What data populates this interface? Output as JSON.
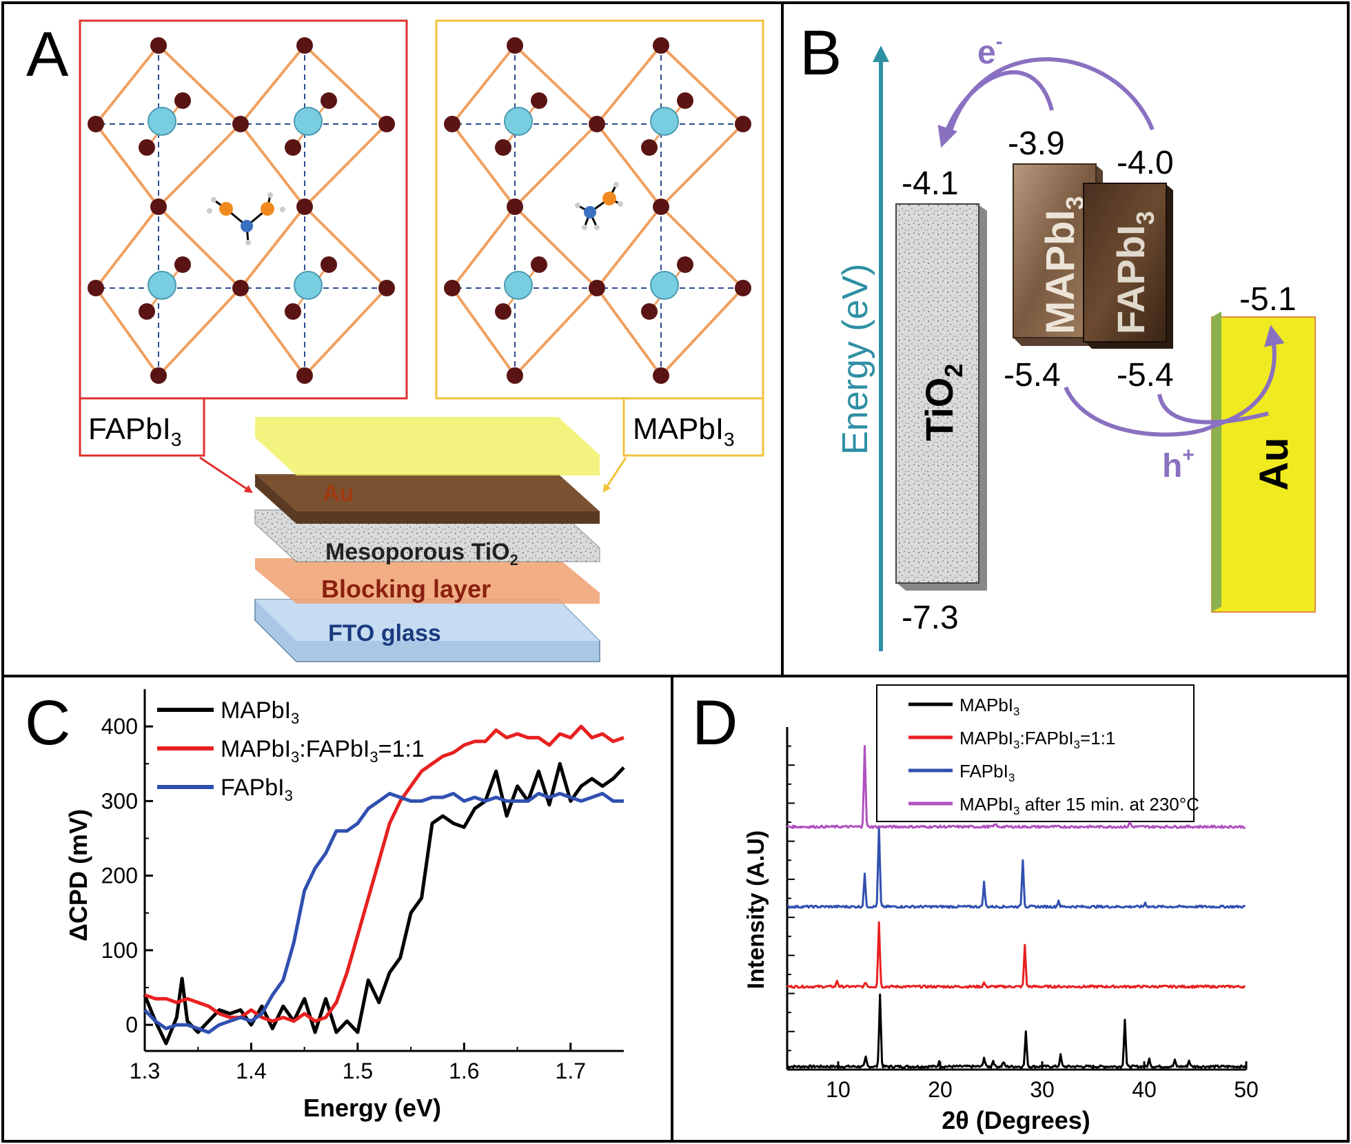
{
  "panels": {
    "A": {
      "letter": "A",
      "fa_label": "FAPbI",
      "fa_sub": "3",
      "ma_label": "MAPbI",
      "ma_sub": "3",
      "layers": {
        "au": "Au",
        "tio2": "Mesoporous TiO",
        "tio2_sub": "2",
        "blocking": "Blocking layer",
        "fto": "FTO glass"
      },
      "colors": {
        "fa_frame": "#e03030",
        "ma_frame": "#f2c23a",
        "bond": "#f0a060",
        "atom": "#5a1414",
        "center": "#79cde0"
      }
    },
    "B": {
      "letter": "B",
      "axis_label": "Energy (eV)",
      "electron": "e",
      "electron_sup": "-",
      "hole": "h",
      "hole_sup": "+",
      "tio2": {
        "name": "TiO",
        "sub": "2",
        "cb": "-4.1",
        "vb": "-7.3"
      },
      "mapbi3": {
        "name": "MAPbI",
        "sub": "3",
        "cb": "-3.9",
        "vb": "-5.4"
      },
      "fapbi3": {
        "name": "FAPbI",
        "sub": "3",
        "cb": "-4.0",
        "vb": "-5.4"
      },
      "au": {
        "name": "Au",
        "level": "-5.1"
      },
      "colors": {
        "axis": "#2e8fa3",
        "arrow": "#8a70c0",
        "au": "#f0ea20"
      }
    },
    "C": {
      "letter": "C",
      "xlabel": "Energy (eV)",
      "ylabel": "ΔCPD (mV)",
      "legend": [
        {
          "name": "MAPbI",
          "sub": "3",
          "tail": "",
          "color": "#000000"
        },
        {
          "name": "MAPbI",
          "sub": "3",
          "tail": ":FAPbI",
          "sub2": "3",
          "tail2": "=1:1",
          "color": "#e82020"
        },
        {
          "name": "FAPbI",
          "sub": "3",
          "tail": "",
          "color": "#3050b0"
        }
      ]
    },
    "D": {
      "letter": "D",
      "xlabel": "2θ (Degrees)",
      "ylabel": "Intensity (A.U)",
      "legend": [
        {
          "name": "MAPbI",
          "sub": "3",
          "tail": "",
          "color": "#000000"
        },
        {
          "name": "MAPbI",
          "sub": "3",
          "tail": ":FAPbI",
          "sub2": "3",
          "tail2": "=1:1",
          "color": "#e82020"
        },
        {
          "name": "FAPbI",
          "sub": "3",
          "tail": "",
          "color": "#3050b0"
        },
        {
          "name": "MAPbI",
          "sub": "3",
          "tail": " after 15 min. at 230°C",
          "color": "#b050c0"
        }
      ]
    }
  },
  "chart_data": [
    {
      "type": "line",
      "panel": "C",
      "xlabel": "Energy (eV)",
      "ylabel": "ΔCPD (mV)",
      "xlim": [
        1.3,
        1.75
      ],
      "ylim": [
        -35,
        450
      ],
      "xticks": [
        1.3,
        1.4,
        1.5,
        1.6,
        1.7
      ],
      "yticks": [
        0,
        100,
        200,
        300,
        400
      ],
      "series": [
        {
          "name": "MAPbI3",
          "color": "#000000",
          "x": [
            1.3,
            1.31,
            1.32,
            1.33,
            1.335,
            1.34,
            1.35,
            1.36,
            1.37,
            1.38,
            1.39,
            1.4,
            1.41,
            1.42,
            1.43,
            1.44,
            1.45,
            1.46,
            1.47,
            1.48,
            1.49,
            1.5,
            1.51,
            1.52,
            1.53,
            1.54,
            1.55,
            1.56,
            1.57,
            1.58,
            1.59,
            1.6,
            1.61,
            1.62,
            1.63,
            1.64,
            1.65,
            1.66,
            1.67,
            1.68,
            1.69,
            1.7,
            1.71,
            1.72,
            1.73,
            1.74,
            1.75
          ],
          "y": [
            40,
            5,
            -25,
            10,
            62,
            5,
            -10,
            5,
            20,
            15,
            20,
            0,
            25,
            -5,
            25,
            5,
            35,
            -10,
            35,
            -10,
            5,
            -10,
            60,
            30,
            70,
            90,
            150,
            170,
            270,
            280,
            270,
            265,
            290,
            300,
            340,
            280,
            320,
            300,
            340,
            295,
            350,
            300,
            320,
            330,
            320,
            330,
            345
          ]
        },
        {
          "name": "MAPbI3:FAPbI3=1:1",
          "color": "#e82020",
          "x": [
            1.3,
            1.31,
            1.32,
            1.33,
            1.34,
            1.35,
            1.36,
            1.37,
            1.38,
            1.39,
            1.4,
            1.41,
            1.42,
            1.43,
            1.44,
            1.45,
            1.46,
            1.47,
            1.48,
            1.49,
            1.5,
            1.51,
            1.52,
            1.53,
            1.54,
            1.55,
            1.56,
            1.57,
            1.58,
            1.59,
            1.6,
            1.61,
            1.62,
            1.63,
            1.64,
            1.65,
            1.66,
            1.67,
            1.68,
            1.69,
            1.7,
            1.71,
            1.72,
            1.73,
            1.74,
            1.75
          ],
          "y": [
            40,
            35,
            35,
            30,
            35,
            30,
            25,
            15,
            10,
            10,
            20,
            10,
            5,
            10,
            5,
            15,
            5,
            10,
            30,
            70,
            120,
            170,
            220,
            270,
            300,
            320,
            340,
            350,
            360,
            365,
            375,
            380,
            380,
            395,
            385,
            390,
            385,
            385,
            375,
            390,
            385,
            400,
            385,
            390,
            380,
            385
          ]
        },
        {
          "name": "FAPbI3",
          "color": "#3050b0",
          "x": [
            1.3,
            1.31,
            1.32,
            1.33,
            1.34,
            1.35,
            1.36,
            1.37,
            1.38,
            1.39,
            1.4,
            1.41,
            1.42,
            1.43,
            1.44,
            1.45,
            1.46,
            1.47,
            1.48,
            1.49,
            1.5,
            1.51,
            1.52,
            1.53,
            1.54,
            1.55,
            1.56,
            1.57,
            1.58,
            1.59,
            1.6,
            1.61,
            1.62,
            1.63,
            1.64,
            1.65,
            1.66,
            1.67,
            1.68,
            1.69,
            1.7,
            1.71,
            1.72,
            1.73,
            1.74,
            1.75
          ],
          "y": [
            20,
            5,
            -5,
            0,
            0,
            -5,
            -10,
            0,
            5,
            10,
            5,
            15,
            40,
            60,
            110,
            180,
            210,
            230,
            260,
            260,
            270,
            290,
            300,
            310,
            305,
            300,
            300,
            305,
            305,
            310,
            300,
            305,
            300,
            305,
            300,
            300,
            300,
            310,
            305,
            310,
            305,
            300,
            305,
            310,
            300,
            300
          ]
        }
      ]
    },
    {
      "type": "line",
      "panel": "D",
      "xlabel": "2θ (Degrees)",
      "ylabel": "Intensity (A.U)",
      "xlim": [
        5,
        50
      ],
      "ylim": [
        0,
        4.5
      ],
      "xticks": [
        10,
        20,
        30,
        40,
        50
      ],
      "series": [
        {
          "name": "MAPbI3",
          "color": "#000000",
          "offset": 0,
          "peaks": [
            [
              12.7,
              0.12
            ],
            [
              14.1,
              0.95
            ],
            [
              19.9,
              0.06
            ],
            [
              24.3,
              0.12
            ],
            [
              25.2,
              0.08
            ],
            [
              26.2,
              0.06
            ],
            [
              28.4,
              0.45
            ],
            [
              31.8,
              0.15
            ],
            [
              38.1,
              0.62
            ],
            [
              40.5,
              0.1
            ],
            [
              43.0,
              0.08
            ],
            [
              44.4,
              0.08
            ]
          ]
        },
        {
          "name": "MAPbI3:FAPbI3=1:1",
          "color": "#e82020",
          "offset": 1.05,
          "peaks": [
            [
              9.9,
              0.08
            ],
            [
              12.7,
              0.06
            ],
            [
              14.0,
              0.85
            ],
            [
              24.3,
              0.05
            ],
            [
              28.3,
              0.55
            ]
          ]
        },
        {
          "name": "FAPbI3",
          "color": "#3050b0",
          "offset": 2.1,
          "peaks": [
            [
              12.6,
              0.42
            ],
            [
              14.0,
              1.05
            ],
            [
              24.3,
              0.32
            ],
            [
              28.1,
              0.62
            ],
            [
              31.6,
              0.08
            ],
            [
              40.1,
              0.05
            ]
          ]
        },
        {
          "name": "MAPbI3 after 15 min. at 230°C",
          "color": "#b050c0",
          "offset": 3.15,
          "peaks": [
            [
              12.6,
              1.05
            ],
            [
              25.4,
              0.04
            ],
            [
              38.6,
              0.06
            ]
          ]
        }
      ]
    }
  ]
}
